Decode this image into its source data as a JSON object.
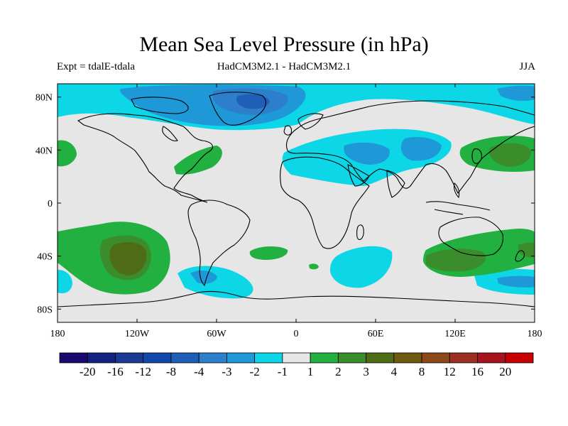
{
  "title": "Mean Sea Level Pressure (in hPa)",
  "subtitle_left": "Expt = tdalE-tdala",
  "subtitle_center": "HadCM3M2.1 - HadCM3M2.1",
  "subtitle_right": "JJA",
  "colors": {
    "neg": [
      "#1a0a6e",
      "#14237f",
      "#1a3a95",
      "#1248aa",
      "#1f5fb8",
      "#2d7fcc",
      "#1e98d6",
      "#0dd6e6"
    ],
    "neutral": "#e6e6e6",
    "pos": [
      "#22b040",
      "#3b8d2c",
      "#4e6c16",
      "#6f5a10",
      "#8c4a1a",
      "#9c3020",
      "#a8141e",
      "#c80000"
    ],
    "coast": "#000000"
  },
  "chart_data": {
    "type": "contour_map",
    "variable": "Mean Sea Level Pressure difference",
    "units": "hPa",
    "season": "JJA",
    "xlim": [
      -180,
      180
    ],
    "ylim": [
      -90,
      90
    ],
    "x_ticks": [
      "180",
      "120W",
      "60W",
      "0",
      "60E",
      "120E",
      "180"
    ],
    "y_ticks": [
      "80N",
      "40N",
      "0",
      "40S",
      "80S"
    ],
    "colorbar_labels": [
      "-20",
      "-16",
      "-12",
      "-8",
      "-4",
      "-3",
      "-2",
      "-1",
      "1",
      "2",
      "3",
      "4",
      "8",
      "12",
      "16",
      "20"
    ],
    "regions": [
      {
        "name": "Arctic / North Atlantic low",
        "value_range": [
          -4,
          -1
        ]
      },
      {
        "name": "Eurasia / Middle East low",
        "value_range": [
          -3,
          -1
        ]
      },
      {
        "name": "North Pacific high",
        "value_range": [
          1,
          4
        ]
      },
      {
        "name": "Southeast Pacific high",
        "value_range": [
          1,
          4
        ]
      },
      {
        "name": "South Indian Ocean / Australia high",
        "value_range": [
          1,
          4
        ]
      },
      {
        "name": "Southern Ocean south of Africa low",
        "value_range": [
          -2,
          -1
        ]
      },
      {
        "name": "Drake Passage low",
        "value_range": [
          -3,
          -1
        ]
      }
    ]
  }
}
